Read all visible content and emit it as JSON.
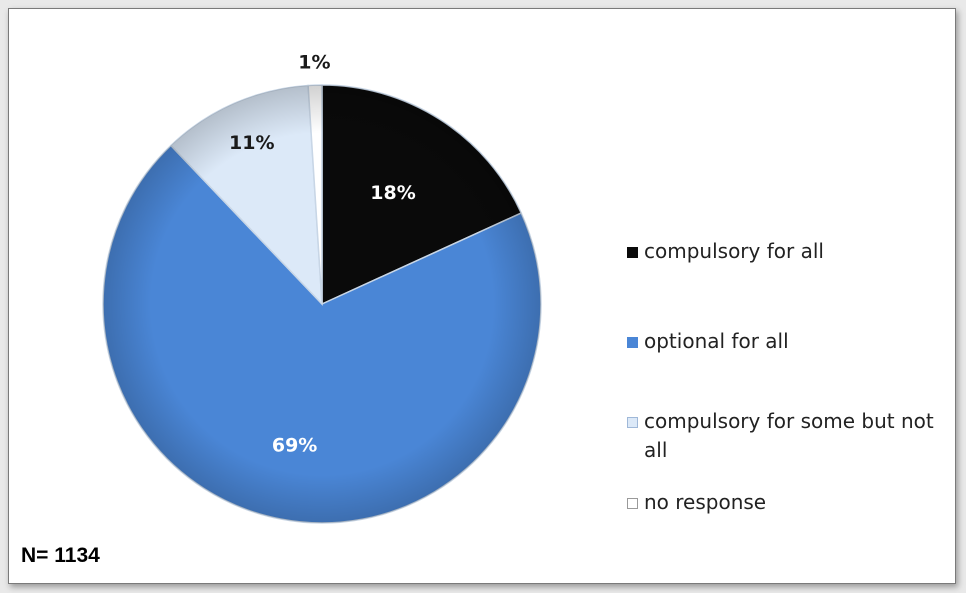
{
  "chart_data": {
    "type": "pie",
    "start_angle_deg": 0,
    "direction": "clockwise",
    "slices": [
      {
        "label": "compulsory for all",
        "value": 18,
        "value_label": "18%",
        "color": "#0a0a0a",
        "label_color": "#ffffff"
      },
      {
        "label": "optional for all",
        "value": 69,
        "value_label": "69%",
        "color": "#4a86d6",
        "label_color": "#ffffff"
      },
      {
        "label": "compulsory for some but not all",
        "value": 11,
        "value_label": "11%",
        "color": "#dce9f8",
        "label_color": "#1a1a1a"
      },
      {
        "label": "no response",
        "value": 1,
        "value_label": "1%",
        "color": "#ffffff",
        "label_color": "#1a1a1a"
      }
    ],
    "legend_position": "right",
    "note": "N= 1134"
  }
}
